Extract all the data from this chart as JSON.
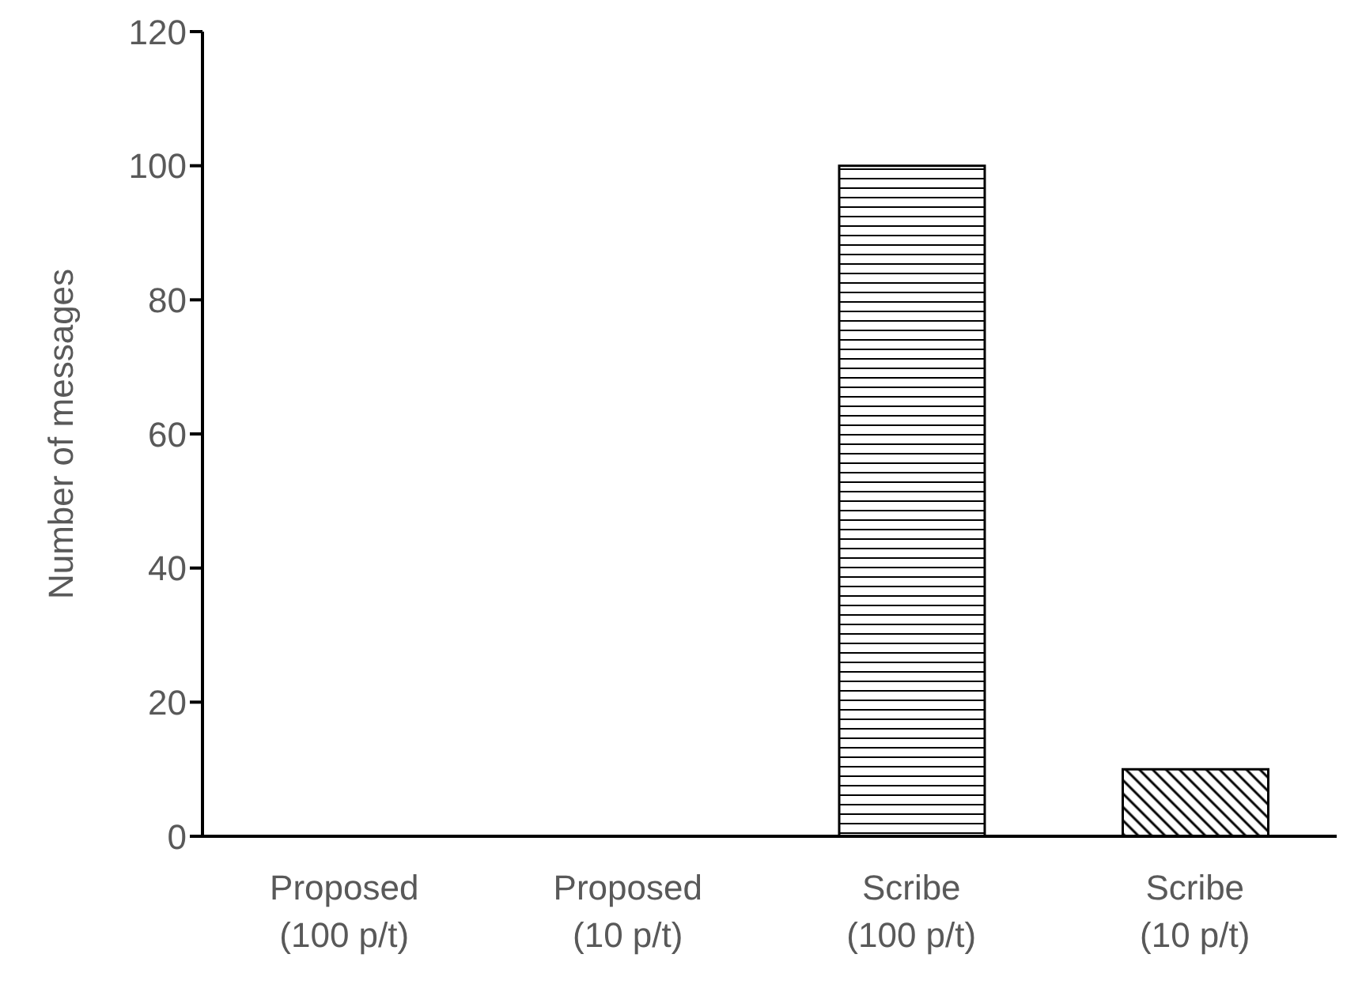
{
  "chart_data": {
    "type": "bar",
    "ylabel": "Number of messages",
    "categories": [
      "Proposed\n(100 p/t)",
      "Proposed\n(10 p/t)",
      "Scribe\n(100 p/t)",
      "Scribe\n(10 p/t)"
    ],
    "values": [
      0,
      0,
      100,
      10
    ],
    "colors": [
      "#000000",
      "#000000",
      "#000000",
      "#000000"
    ],
    "ylim": [
      0,
      120
    ],
    "yticks": [
      0,
      20,
      40,
      60,
      80,
      100,
      120
    ],
    "grid": false,
    "legend": false
  }
}
